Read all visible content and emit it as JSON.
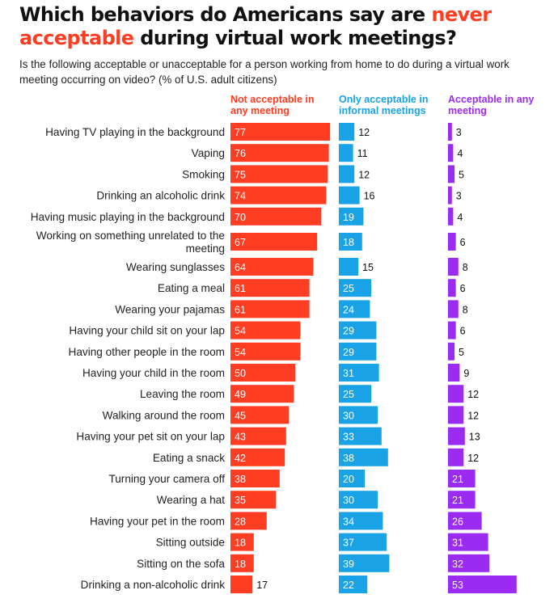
{
  "title": {
    "part1": "Which behaviors do Americans say are ",
    "highlight1": "never",
    "highlight2": "acceptable",
    "part2": " during virtual work meetings?"
  },
  "subtitle": "Is the following acceptable or unacceptable for a person working from home to do during a virtual work meeting occurring on video? (% of U.S. adult citizens)",
  "colors": {
    "not_acceptable": "#ff3d22",
    "informal": "#19a3e6",
    "acceptable": "#9b2bf0"
  },
  "chart_data": {
    "type": "bar",
    "categories": [
      "Having TV playing in the background",
      "Vaping",
      "Smoking",
      "Drinking an alcoholic drink",
      "Having music playing in the background",
      "Working on something unrelated to the meeting",
      "Wearing sunglasses",
      "Eating a meal",
      "Wearing your pajamas",
      "Having your child sit on your lap",
      "Having other people in the room",
      "Having your child in the room",
      "Leaving the room",
      "Walking around the room",
      "Having your pet sit on your lap",
      "Eating a snack",
      "Turning your camera off",
      "Wearing a hat",
      "Having your pet in the room",
      "Sitting outside",
      "Sitting on the sofa",
      "Drinking a non-alcoholic drink"
    ],
    "series": [
      {
        "name": "Not acceptable in any meeting",
        "values": [
          77,
          76,
          75,
          74,
          70,
          67,
          64,
          61,
          61,
          54,
          54,
          50,
          49,
          45,
          43,
          42,
          38,
          35,
          28,
          18,
          18,
          17
        ]
      },
      {
        "name": "Only acceptable in informal meetings",
        "values": [
          12,
          11,
          12,
          16,
          19,
          18,
          15,
          25,
          24,
          29,
          29,
          31,
          25,
          30,
          33,
          38,
          20,
          30,
          34,
          37,
          39,
          22
        ]
      },
      {
        "name": "Acceptable in any meeting",
        "values": [
          3,
          4,
          5,
          3,
          4,
          6,
          8,
          6,
          8,
          6,
          5,
          9,
          12,
          12,
          13,
          12,
          21,
          21,
          26,
          31,
          32,
          53
        ]
      }
    ]
  }
}
